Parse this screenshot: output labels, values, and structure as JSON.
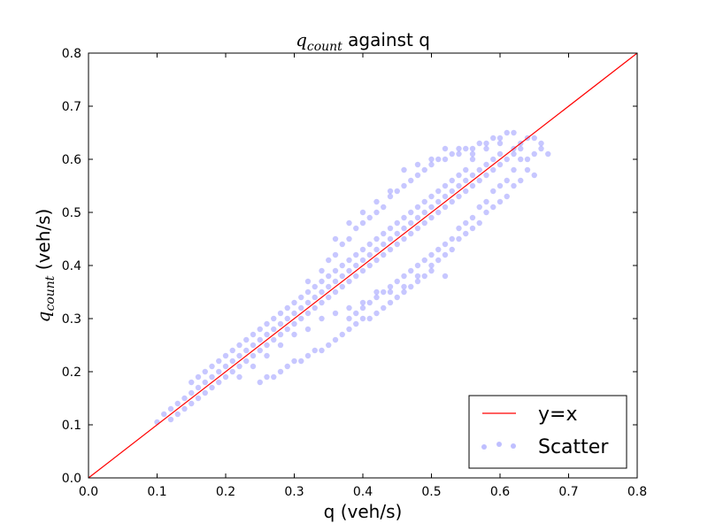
{
  "chart_data": {
    "type": "scatter",
    "title": {
      "math_base": "q",
      "math_sub": "count",
      "rest": " against q"
    },
    "xlabel": "q (veh/s)",
    "ylabel": {
      "math_base": "q",
      "math_sub": "count",
      "rest": "  (veh/s)"
    },
    "xlim": [
      0.0,
      0.8
    ],
    "ylim": [
      0.0,
      0.8
    ],
    "x_ticks": [
      "0.0",
      "0.1",
      "0.2",
      "0.3",
      "0.4",
      "0.5",
      "0.6",
      "0.7",
      "0.8"
    ],
    "y_ticks": [
      "0.0",
      "0.1",
      "0.2",
      "0.3",
      "0.4",
      "0.5",
      "0.6",
      "0.7",
      "0.8"
    ],
    "grid": false,
    "legend": {
      "placement": "lower-right",
      "entries": [
        "y=x",
        "Scatter"
      ]
    },
    "series": [
      {
        "name": "y=x",
        "kind": "line",
        "color": "#ff0000",
        "x": [
          0.0,
          0.8
        ],
        "y": [
          0.0,
          0.8
        ]
      },
      {
        "name": "Scatter",
        "kind": "scatter",
        "color": "#0000ff",
        "alpha": 0.22,
        "points": [
          [
            0.1,
            0.105
          ],
          [
            0.11,
            0.12
          ],
          [
            0.12,
            0.11
          ],
          [
            0.12,
            0.13
          ],
          [
            0.13,
            0.12
          ],
          [
            0.13,
            0.14
          ],
          [
            0.14,
            0.13
          ],
          [
            0.14,
            0.15
          ],
          [
            0.15,
            0.14
          ],
          [
            0.15,
            0.16
          ],
          [
            0.16,
            0.15
          ],
          [
            0.16,
            0.17
          ],
          [
            0.17,
            0.16
          ],
          [
            0.17,
            0.18
          ],
          [
            0.18,
            0.17
          ],
          [
            0.18,
            0.19
          ],
          [
            0.19,
            0.18
          ],
          [
            0.19,
            0.2
          ],
          [
            0.2,
            0.19
          ],
          [
            0.2,
            0.21
          ],
          [
            0.21,
            0.2
          ],
          [
            0.21,
            0.22
          ],
          [
            0.22,
            0.21
          ],
          [
            0.22,
            0.23
          ],
          [
            0.23,
            0.22
          ],
          [
            0.23,
            0.24
          ],
          [
            0.24,
            0.23
          ],
          [
            0.24,
            0.25
          ],
          [
            0.25,
            0.24
          ],
          [
            0.25,
            0.26
          ],
          [
            0.26,
            0.25
          ],
          [
            0.26,
            0.27
          ],
          [
            0.27,
            0.26
          ],
          [
            0.27,
            0.28
          ],
          [
            0.28,
            0.27
          ],
          [
            0.28,
            0.29
          ],
          [
            0.29,
            0.28
          ],
          [
            0.29,
            0.3
          ],
          [
            0.3,
            0.29
          ],
          [
            0.3,
            0.31
          ],
          [
            0.31,
            0.3
          ],
          [
            0.31,
            0.32
          ],
          [
            0.32,
            0.31
          ],
          [
            0.32,
            0.33
          ],
          [
            0.33,
            0.32
          ],
          [
            0.33,
            0.34
          ],
          [
            0.34,
            0.33
          ],
          [
            0.34,
            0.35
          ],
          [
            0.35,
            0.34
          ],
          [
            0.35,
            0.36
          ],
          [
            0.36,
            0.35
          ],
          [
            0.36,
            0.37
          ],
          [
            0.37,
            0.36
          ],
          [
            0.37,
            0.38
          ],
          [
            0.38,
            0.37
          ],
          [
            0.38,
            0.39
          ],
          [
            0.39,
            0.38
          ],
          [
            0.39,
            0.4
          ],
          [
            0.4,
            0.39
          ],
          [
            0.4,
            0.41
          ],
          [
            0.41,
            0.4
          ],
          [
            0.41,
            0.42
          ],
          [
            0.42,
            0.41
          ],
          [
            0.42,
            0.43
          ],
          [
            0.43,
            0.42
          ],
          [
            0.43,
            0.44
          ],
          [
            0.44,
            0.43
          ],
          [
            0.44,
            0.45
          ],
          [
            0.45,
            0.44
          ],
          [
            0.45,
            0.46
          ],
          [
            0.46,
            0.45
          ],
          [
            0.46,
            0.47
          ],
          [
            0.47,
            0.46
          ],
          [
            0.47,
            0.48
          ],
          [
            0.48,
            0.47
          ],
          [
            0.48,
            0.49
          ],
          [
            0.49,
            0.48
          ],
          [
            0.49,
            0.5
          ],
          [
            0.5,
            0.49
          ],
          [
            0.5,
            0.51
          ],
          [
            0.51,
            0.5
          ],
          [
            0.51,
            0.52
          ],
          [
            0.52,
            0.51
          ],
          [
            0.52,
            0.53
          ],
          [
            0.53,
            0.52
          ],
          [
            0.53,
            0.54
          ],
          [
            0.54,
            0.53
          ],
          [
            0.54,
            0.55
          ],
          [
            0.55,
            0.54
          ],
          [
            0.55,
            0.56
          ],
          [
            0.56,
            0.55
          ],
          [
            0.56,
            0.57
          ],
          [
            0.57,
            0.56
          ],
          [
            0.57,
            0.58
          ],
          [
            0.58,
            0.57
          ],
          [
            0.58,
            0.59
          ],
          [
            0.59,
            0.58
          ],
          [
            0.59,
            0.6
          ],
          [
            0.6,
            0.59
          ],
          [
            0.6,
            0.61
          ],
          [
            0.61,
            0.6
          ],
          [
            0.62,
            0.61
          ],
          [
            0.63,
            0.62
          ],
          [
            0.64,
            0.6
          ],
          [
            0.65,
            0.61
          ],
          [
            0.66,
            0.62
          ],
          [
            0.67,
            0.61
          ],
          [
            0.66,
            0.63
          ],
          [
            0.65,
            0.64
          ],
          [
            0.64,
            0.64
          ],
          [
            0.63,
            0.63
          ],
          [
            0.62,
            0.58
          ],
          [
            0.61,
            0.56
          ],
          [
            0.6,
            0.55
          ],
          [
            0.59,
            0.54
          ],
          [
            0.58,
            0.52
          ],
          [
            0.57,
            0.51
          ],
          [
            0.56,
            0.49
          ],
          [
            0.55,
            0.48
          ],
          [
            0.54,
            0.47
          ],
          [
            0.53,
            0.45
          ],
          [
            0.52,
            0.44
          ],
          [
            0.51,
            0.43
          ],
          [
            0.5,
            0.42
          ],
          [
            0.49,
            0.41
          ],
          [
            0.48,
            0.4
          ],
          [
            0.47,
            0.39
          ],
          [
            0.46,
            0.38
          ],
          [
            0.45,
            0.37
          ],
          [
            0.44,
            0.36
          ],
          [
            0.43,
            0.35
          ],
          [
            0.42,
            0.34
          ],
          [
            0.41,
            0.33
          ],
          [
            0.4,
            0.32
          ],
          [
            0.39,
            0.31
          ],
          [
            0.38,
            0.3
          ],
          [
            0.52,
            0.38
          ],
          [
            0.5,
            0.4
          ],
          [
            0.48,
            0.38
          ],
          [
            0.46,
            0.36
          ],
          [
            0.44,
            0.35
          ],
          [
            0.42,
            0.35
          ],
          [
            0.4,
            0.33
          ],
          [
            0.38,
            0.32
          ],
          [
            0.36,
            0.31
          ],
          [
            0.34,
            0.3
          ],
          [
            0.32,
            0.28
          ],
          [
            0.3,
            0.27
          ],
          [
            0.28,
            0.25
          ],
          [
            0.26,
            0.23
          ],
          [
            0.24,
            0.21
          ],
          [
            0.22,
            0.19
          ],
          [
            0.32,
            0.37
          ],
          [
            0.34,
            0.39
          ],
          [
            0.35,
            0.41
          ],
          [
            0.36,
            0.42
          ],
          [
            0.37,
            0.44
          ],
          [
            0.38,
            0.45
          ],
          [
            0.39,
            0.47
          ],
          [
            0.4,
            0.48
          ],
          [
            0.41,
            0.49
          ],
          [
            0.42,
            0.5
          ],
          [
            0.43,
            0.51
          ],
          [
            0.44,
            0.53
          ],
          [
            0.45,
            0.54
          ],
          [
            0.46,
            0.55
          ],
          [
            0.47,
            0.56
          ],
          [
            0.48,
            0.57
          ],
          [
            0.49,
            0.58
          ],
          [
            0.5,
            0.59
          ],
          [
            0.51,
            0.6
          ],
          [
            0.52,
            0.6
          ],
          [
            0.53,
            0.61
          ],
          [
            0.54,
            0.61
          ],
          [
            0.55,
            0.62
          ],
          [
            0.56,
            0.62
          ],
          [
            0.57,
            0.63
          ],
          [
            0.58,
            0.63
          ],
          [
            0.59,
            0.64
          ],
          [
            0.6,
            0.64
          ],
          [
            0.61,
            0.65
          ],
          [
            0.62,
            0.65
          ],
          [
            0.56,
            0.6
          ],
          [
            0.55,
            0.58
          ],
          [
            0.54,
            0.57
          ],
          [
            0.53,
            0.56
          ],
          [
            0.52,
            0.55
          ],
          [
            0.51,
            0.54
          ],
          [
            0.5,
            0.53
          ],
          [
            0.49,
            0.52
          ],
          [
            0.48,
            0.51
          ],
          [
            0.47,
            0.5
          ],
          [
            0.46,
            0.49
          ],
          [
            0.45,
            0.48
          ],
          [
            0.44,
            0.47
          ],
          [
            0.43,
            0.46
          ],
          [
            0.42,
            0.45
          ],
          [
            0.41,
            0.44
          ],
          [
            0.4,
            0.43
          ],
          [
            0.39,
            0.42
          ],
          [
            0.38,
            0.41
          ],
          [
            0.37,
            0.4
          ],
          [
            0.36,
            0.39
          ],
          [
            0.35,
            0.38
          ],
          [
            0.34,
            0.37
          ],
          [
            0.33,
            0.36
          ],
          [
            0.32,
            0.35
          ],
          [
            0.31,
            0.34
          ],
          [
            0.3,
            0.33
          ],
          [
            0.29,
            0.32
          ],
          [
            0.28,
            0.31
          ],
          [
            0.27,
            0.3
          ],
          [
            0.26,
            0.29
          ],
          [
            0.25,
            0.28
          ],
          [
            0.24,
            0.27
          ],
          [
            0.23,
            0.26
          ],
          [
            0.22,
            0.25
          ],
          [
            0.21,
            0.24
          ],
          [
            0.2,
            0.23
          ],
          [
            0.19,
            0.22
          ],
          [
            0.18,
            0.21
          ],
          [
            0.17,
            0.2
          ],
          [
            0.16,
            0.19
          ],
          [
            0.15,
            0.18
          ],
          [
            0.36,
            0.45
          ],
          [
            0.38,
            0.48
          ],
          [
            0.4,
            0.5
          ],
          [
            0.42,
            0.52
          ],
          [
            0.44,
            0.54
          ],
          [
            0.46,
            0.58
          ],
          [
            0.48,
            0.59
          ],
          [
            0.5,
            0.6
          ],
          [
            0.52,
            0.62
          ],
          [
            0.54,
            0.62
          ],
          [
            0.56,
            0.61
          ],
          [
            0.58,
            0.62
          ],
          [
            0.6,
            0.63
          ],
          [
            0.62,
            0.62
          ],
          [
            0.63,
            0.6
          ],
          [
            0.64,
            0.58
          ],
          [
            0.65,
            0.57
          ],
          [
            0.63,
            0.56
          ],
          [
            0.62,
            0.55
          ],
          [
            0.61,
            0.53
          ],
          [
            0.6,
            0.52
          ],
          [
            0.59,
            0.51
          ],
          [
            0.58,
            0.5
          ],
          [
            0.57,
            0.48
          ],
          [
            0.56,
            0.47
          ],
          [
            0.55,
            0.46
          ],
          [
            0.54,
            0.45
          ],
          [
            0.53,
            0.43
          ],
          [
            0.52,
            0.42
          ],
          [
            0.51,
            0.41
          ],
          [
            0.5,
            0.39
          ],
          [
            0.49,
            0.38
          ],
          [
            0.48,
            0.37
          ],
          [
            0.47,
            0.36
          ],
          [
            0.46,
            0.35
          ],
          [
            0.45,
            0.34
          ],
          [
            0.44,
            0.33
          ],
          [
            0.43,
            0.32
          ],
          [
            0.42,
            0.31
          ],
          [
            0.41,
            0.3
          ],
          [
            0.4,
            0.3
          ],
          [
            0.39,
            0.29
          ],
          [
            0.38,
            0.28
          ],
          [
            0.37,
            0.27
          ],
          [
            0.36,
            0.26
          ],
          [
            0.35,
            0.25
          ],
          [
            0.34,
            0.24
          ],
          [
            0.33,
            0.24
          ],
          [
            0.32,
            0.23
          ],
          [
            0.31,
            0.22
          ],
          [
            0.3,
            0.22
          ],
          [
            0.29,
            0.21
          ],
          [
            0.28,
            0.2
          ],
          [
            0.27,
            0.19
          ],
          [
            0.26,
            0.19
          ],
          [
            0.25,
            0.18
          ]
        ]
      }
    ]
  }
}
